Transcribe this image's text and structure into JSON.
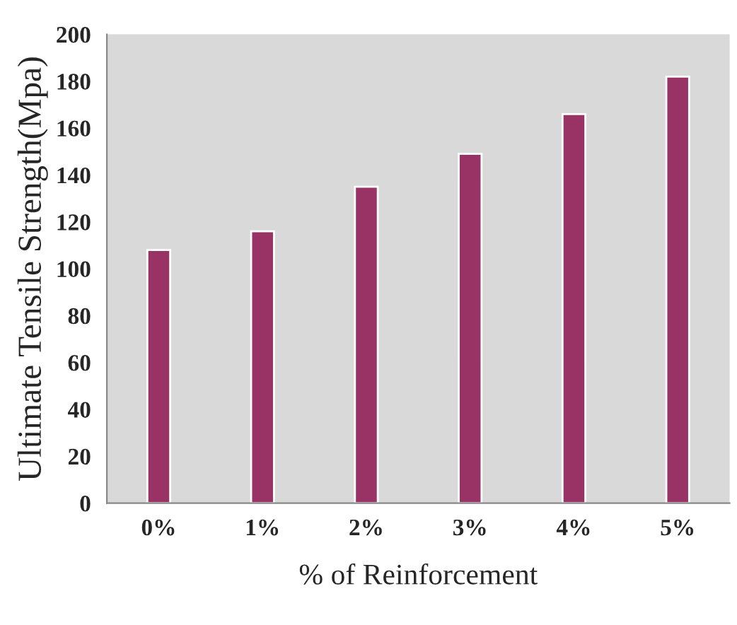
{
  "chart_data": {
    "type": "bar",
    "xlabel": "% of Reinforcement",
    "ylabel": "Ultimate Tensile Strength(Mpa)",
    "categories": [
      "0%",
      "1%",
      "2%",
      "3%",
      "4%",
      "5%"
    ],
    "values": [
      108,
      116,
      135,
      149,
      166,
      182
    ],
    "color": "#993366",
    "ylim": [
      0,
      200
    ],
    "yticks": [
      0,
      20,
      40,
      60,
      80,
      100,
      120,
      140,
      160,
      180,
      200
    ],
    "grid": false,
    "legend": false
  }
}
